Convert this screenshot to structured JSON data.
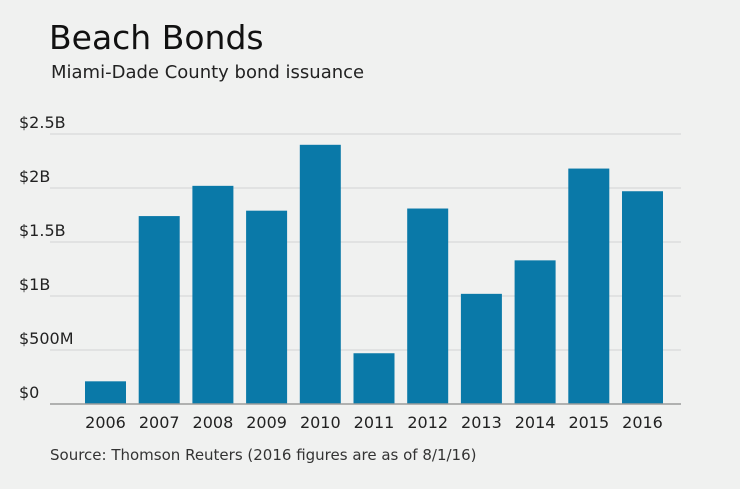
{
  "header": {
    "title": "Beach Bonds",
    "subtitle": "Miami-Dade County bond issuance"
  },
  "footer": {
    "source": "Source: Thomson Reuters (2016 figures are as of 8/1/16)"
  },
  "colors": {
    "bar": "#0a79a8",
    "grid": "#d2d4d3",
    "baseline": "#9a9c9b",
    "background": "#f0f1f0"
  },
  "chart_data": {
    "type": "bar",
    "title": "Beach Bonds",
    "subtitle": "Miami-Dade County bond issuance",
    "xlabel": "",
    "ylabel": "",
    "categories": [
      "2006",
      "2007",
      "2008",
      "2009",
      "2010",
      "2011",
      "2012",
      "2013",
      "2014",
      "2015",
      "2016"
    ],
    "values": [
      0.21,
      1.74,
      2.02,
      1.79,
      2.4,
      0.47,
      1.81,
      1.02,
      1.33,
      2.18,
      1.97
    ],
    "unit": "billions USD",
    "ylim": [
      0,
      2.5
    ],
    "yticks": [
      0,
      0.5,
      1,
      1.5,
      2,
      2.5
    ],
    "ytick_labels": [
      "$0",
      "$500M",
      "$1B",
      "$1.5B",
      "$2B",
      "$2.5B"
    ],
    "grid": true,
    "legend": "none"
  }
}
